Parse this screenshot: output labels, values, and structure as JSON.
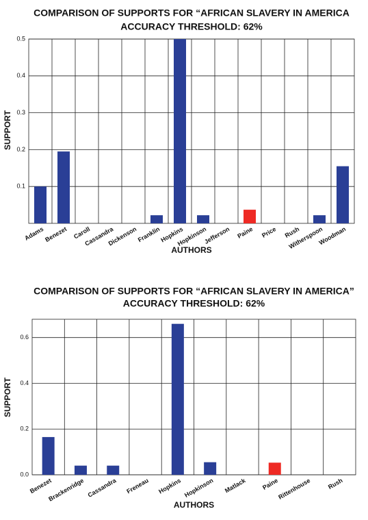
{
  "chart_data": [
    {
      "type": "bar",
      "title": "COMPARISON OF SUPPORTS FOR “AFRICAN SLAVERY IN AMERICA",
      "subtitle": "ACCURACY THRESHOLD: 62%",
      "x_label": "AUTHORS",
      "y_label": "SUPPORT",
      "categories": [
        "Adams",
        "Benezet",
        "Caroll",
        "Cassandra",
        "Dickenson",
        "Franklin",
        "Hopkins",
        "Hopkinson",
        "Jefferson",
        "Paine",
        "Price",
        "Rush",
        "Witherspoon",
        "Woodman"
      ],
      "values": [
        0.1,
        0.195,
        0,
        0,
        0,
        0.022,
        0.5,
        0.022,
        0,
        0.037,
        0,
        0,
        0.022,
        0.155
      ],
      "colors": [
        "#2a3f96",
        "#2a3f96",
        "#2a3f96",
        "#2a3f96",
        "#2a3f96",
        "#2a3f96",
        "#2a3f96",
        "#2a3f96",
        "#2a3f96",
        "#ee2a24",
        "#2a3f96",
        "#2a3f96",
        "#2a3f96",
        "#2a3f96"
      ],
      "ylim": [
        0,
        0.5
      ],
      "yticks": [
        0.1,
        0.2,
        0.3,
        0.4,
        0.5
      ],
      "grid": true
    },
    {
      "type": "bar",
      "title": "COMPARISON OF SUPPORTS FOR “AFRICAN SLAVERY IN AMERICA”",
      "subtitle": "ACCURACY THRESHOLD: 62%",
      "x_label": "AUTHORS",
      "y_label": "SUPPORT",
      "categories": [
        "Benezet",
        "Brackenridge",
        "Cassandra",
        "Freneau",
        "Hopkins",
        "Hopkinson",
        "Matlack",
        "Paine",
        "Rittenhouse",
        "Rush"
      ],
      "values": [
        0.165,
        0.04,
        0.04,
        0,
        0.66,
        0.055,
        0,
        0.053,
        0,
        0
      ],
      "colors": [
        "#2a3f96",
        "#2a3f96",
        "#2a3f96",
        "#2a3f96",
        "#2a3f96",
        "#2a3f96",
        "#2a3f96",
        "#ee2a24",
        "#2a3f96",
        "#2a3f96"
      ],
      "ylim": [
        0,
        0.68
      ],
      "yticks": [
        {
          "value": 0,
          "label": "0.0"
        },
        0.2,
        0.4,
        0.6
      ],
      "grid": true
    }
  ]
}
